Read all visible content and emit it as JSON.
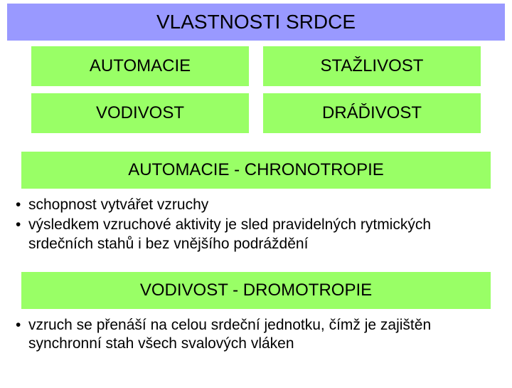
{
  "colors": {
    "title_bg": "#9999ff",
    "cell_bg": "#99ff66",
    "text": "#000000",
    "background": "#ffffff"
  },
  "title": "VLASTNOSTI SRDCE",
  "grid": {
    "cells": [
      "AUTOMACIE",
      "STAŽLIVOST",
      "VODIVOST",
      "DRÁĎIVOST"
    ]
  },
  "sections": [
    {
      "heading": "AUTOMACIE - CHRONOTROPIE",
      "bullets": [
        "schopnost vytvářet vzruchy",
        "výsledkem vzruchové aktivity je sled pravidelných rytmických srdečních stahů i bez vnějšího podráždění"
      ]
    },
    {
      "heading": "VODIVOST - DROMOTROPIE",
      "bullets": [
        "vzruch se přenáší na celou srdeční jednotku, čímž je zajištěn synchronní stah všech svalových vláken"
      ]
    }
  ],
  "typography": {
    "title_fontsize": 28,
    "cell_fontsize": 24,
    "subheader_fontsize": 24,
    "bullet_fontsize": 21
  }
}
